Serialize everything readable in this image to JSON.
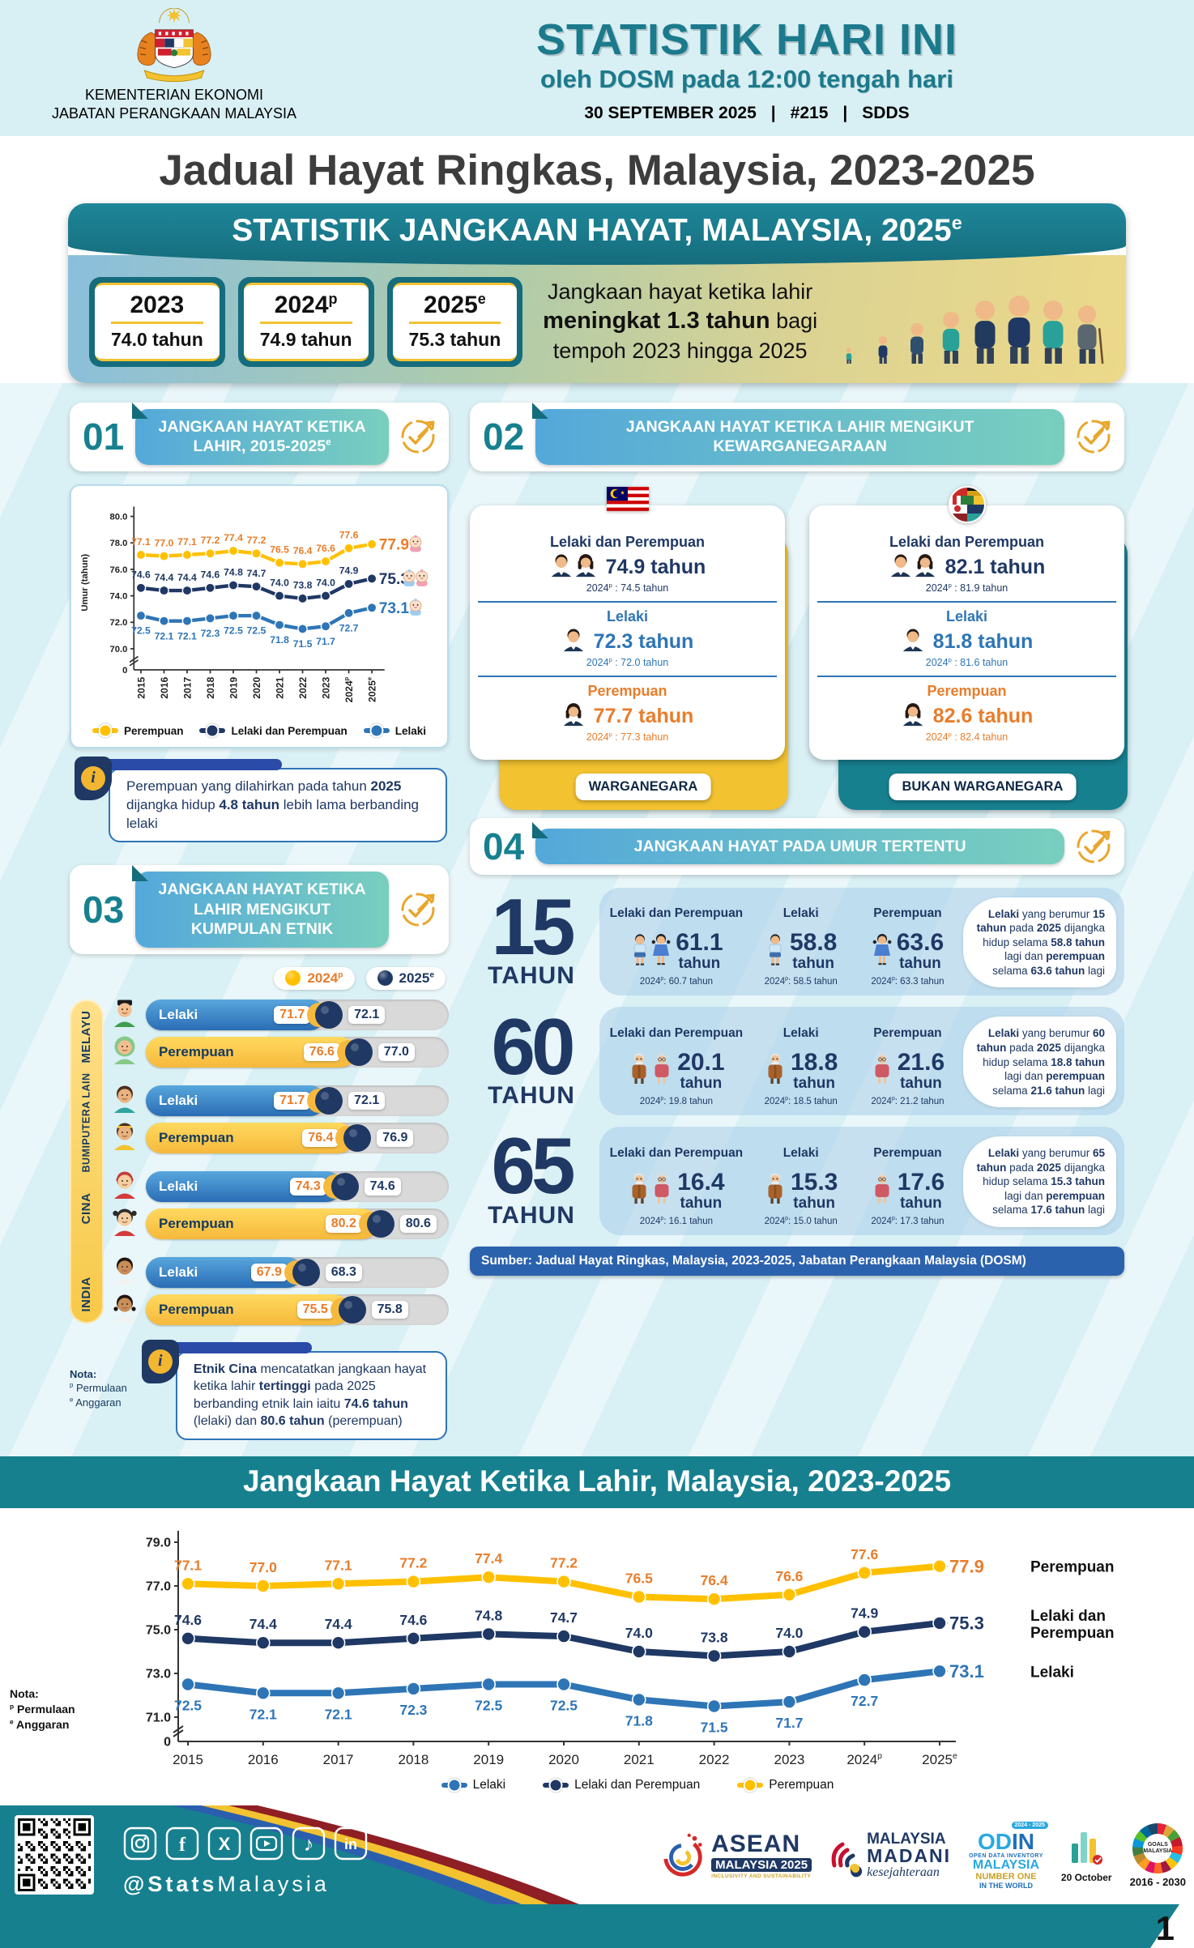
{
  "header": {
    "ministry1": "KEMENTERIAN EKONOMI",
    "ministry2": "JABATAN PERANGKAAN MALAYSIA",
    "title": "STATISTIK HARI INI",
    "subtitle": "oleh DOSM pada 12:00 tengah hari",
    "date": "30 SEPTEMBER 2025",
    "sep": "|",
    "issue": "#215",
    "sdds": "SDDS"
  },
  "page_title": "Jadual Hayat Ringkas, Malaysia, 2023-2025",
  "banner": {
    "title": "STATISTIK JANGKAAN HAYAT, MALAYSIA, 2025^e",
    "years": [
      {
        "year": "2023",
        "sup": "",
        "value": "74.0 tahun"
      },
      {
        "year": "2024",
        "sup": "p",
        "value": "74.9 tahun"
      },
      {
        "year": "2025",
        "sup": "e",
        "value": "75.3 tahun"
      }
    ],
    "highlight": "Jangkaan hayat ketika lahir **meningkat 1.3 tahun** bagi tempoh 2023 hingga 2025"
  },
  "sections": {
    "s1": {
      "number": "01",
      "title": "JANGKAAN HAYAT KETIKA LAHIR, 2015-2025^e"
    },
    "s2": {
      "number": "02",
      "title": "JANGKAAN HAYAT KETIKA LAHIR MENGIKUT KEWARGANEGARAAN"
    },
    "s3": {
      "number": "03",
      "title": "JANGKAAN HAYAT KETIKA LAHIR MENGIKUT KUMPULAN ETNIK"
    },
    "s4": {
      "number": "04",
      "title": "JANGKAAN HAYAT PADA UMUR TERTENTU"
    }
  },
  "notes": {
    "chart1": "Perempuan yang dilahirkan pada tahun **2025** dijangka hidup **4.8 tahun** lebih lama berbanding lelaki",
    "ethnic": "**Etnik Cina** mencatatkan jangkaan hayat ketika lahir **tertinggi** pada 2025 berbanding etnik lain iaitu **74.6 tahun** (lelaki) dan **80.6 tahun** (perempuan)"
  },
  "chart_data": [
    {
      "type": "line",
      "title": "JANGKAAN HAYAT KETIKA LAHIR, 2015-2025e",
      "ylabel": "Umur (tahun)",
      "xlabel": "",
      "x": [
        "2015",
        "2016",
        "2017",
        "2018",
        "2019",
        "2020",
        "2021",
        "2022",
        "2023",
        "2024^p",
        "2025^e"
      ],
      "yticks": [
        "80.0",
        "78.0",
        "76.0",
        "74.0",
        "72.0",
        "70.0"
      ],
      "ymin": 70,
      "ymax": 80,
      "axis_break": true,
      "grid": false,
      "series": [
        {
          "name": "Perempuan",
          "color": "#FFC000",
          "label_color": "#E87D2B",
          "label_pos": "above",
          "end_icon": "baby-girl",
          "values": [
            77.1,
            77.0,
            77.1,
            77.2,
            77.4,
            77.2,
            76.5,
            76.4,
            76.6,
            77.6,
            77.9
          ]
        },
        {
          "name": "Lelaki dan Perempuan",
          "color": "#1F3864",
          "label_color": "#1F3864",
          "label_pos": "above",
          "end_icon": "baby-pair",
          "values": [
            74.6,
            74.4,
            74.4,
            74.6,
            74.8,
            74.7,
            74.0,
            73.8,
            74.0,
            74.9,
            75.3
          ]
        },
        {
          "name": "Lelaki",
          "color": "#2E75B6",
          "label_color": "#2E75B6",
          "label_pos": "below",
          "end_icon": "baby-boy",
          "values": [
            72.5,
            72.1,
            72.1,
            72.3,
            72.5,
            72.5,
            71.8,
            71.5,
            71.7,
            72.7,
            73.1
          ]
        }
      ],
      "legend": [
        "Perempuan",
        "Lelaki dan Perempuan",
        "Lelaki"
      ],
      "legend_position": "bottom"
    },
    {
      "type": "line",
      "title": "Jangkaan Hayat Ketika Lahir, Malaysia, 2023-2025",
      "ylabel": "",
      "xlabel": "",
      "x": [
        "2015",
        "2016",
        "2017",
        "2018",
        "2019",
        "2020",
        "2021",
        "2022",
        "2023",
        "2024^p",
        "2025^e"
      ],
      "yticks": [
        "79.0",
        "77.0",
        "75.0",
        "73.0",
        "71.0"
      ],
      "ymin": 71,
      "ymax": 79,
      "axis_break": true,
      "grid": false,
      "series": [
        {
          "name": "Perempuan",
          "color": "#FFC000",
          "label_color": "#E87D2B",
          "label_pos": "above",
          "values": [
            77.1,
            77.0,
            77.1,
            77.2,
            77.4,
            77.2,
            76.5,
            76.4,
            76.6,
            77.6,
            77.9
          ]
        },
        {
          "name": "Lelaki dan Perempuan",
          "color": "#1F3864",
          "label_color": "#1F3864",
          "label_pos": "above",
          "values": [
            74.6,
            74.4,
            74.4,
            74.6,
            74.8,
            74.7,
            74.0,
            73.8,
            74.0,
            74.9,
            75.3
          ]
        },
        {
          "name": "Lelaki",
          "color": "#2E75B6",
          "label_color": "#2E75B6",
          "label_pos": "below",
          "values": [
            72.5,
            72.1,
            72.1,
            72.3,
            72.5,
            72.5,
            71.8,
            71.5,
            71.7,
            72.7,
            73.1
          ]
        }
      ],
      "legend": [
        "Lelaki",
        "Lelaki dan Perempuan",
        "Perempuan"
      ],
      "legend_position": "bottom",
      "side_labels": true
    }
  ],
  "citizenship": {
    "cards": [
      {
        "icon": "malaysia-flag",
        "tab": "WARGANEGARA",
        "accent": "#F2C230",
        "rows": [
          {
            "label": "Lelaki dan Perempuan",
            "color": "#1F3864",
            "icons": [
              "man",
              "woman"
            ],
            "value": "74.9 tahun",
            "prev": "2024^p : 74.5 tahun"
          },
          {
            "label": "Lelaki",
            "color": "#2E75B6",
            "icons": [
              "man"
            ],
            "value": "72.3 tahun",
            "prev": "2024^p : 72.0 tahun"
          },
          {
            "label": "Perempuan",
            "color": "#E87D2B",
            "icons": [
              "woman"
            ],
            "value": "77.7 tahun",
            "prev": "2024^p : 77.3 tahun"
          }
        ]
      },
      {
        "icon": "world-flags",
        "tab": "BUKAN WARGANEGARA",
        "accent": "#17808F",
        "rows": [
          {
            "label": "Lelaki dan Perempuan",
            "color": "#1F3864",
            "icons": [
              "man",
              "woman"
            ],
            "value": "82.1 tahun",
            "prev": "2024^p : 81.9 tahun"
          },
          {
            "label": "Lelaki",
            "color": "#2E75B6",
            "icons": [
              "man"
            ],
            "value": "81.8 tahun",
            "prev": "2024^p : 81.6 tahun"
          },
          {
            "label": "Perempuan",
            "color": "#E87D2B",
            "icons": [
              "woman"
            ],
            "value": "82.6 tahun",
            "prev": "2024^p : 82.4 tahun"
          }
        ]
      }
    ]
  },
  "ethnic": {
    "legend": [
      {
        "label": "2024^p",
        "dot": "#FFC000",
        "color": "#E87D2B"
      },
      {
        "label": "2025^e",
        "dot": "#1F3864",
        "color": "#1F3864"
      }
    ],
    "groups": [
      {
        "name": "MELAYU",
        "rows": [
          {
            "label": "Lelaki",
            "kind": "lelaki",
            "icon": "melayu-lelaki-icon",
            "v2024": 71.7,
            "v2025": 72.1
          },
          {
            "label": "Perempuan",
            "kind": "perempuan",
            "icon": "melayu-perempuan-icon",
            "v2024": 76.6,
            "v2025": 77.0
          }
        ]
      },
      {
        "name": "BUMIPUTERA LAIN",
        "rows": [
          {
            "label": "Lelaki",
            "kind": "lelaki",
            "icon": "bumiputera-lelaki-icon",
            "v2024": 71.7,
            "v2025": 72.1
          },
          {
            "label": "Perempuan",
            "kind": "perempuan",
            "icon": "bumiputera-perempuan-icon",
            "v2024": 76.4,
            "v2025": 76.9
          }
        ]
      },
      {
        "name": "CINA",
        "rows": [
          {
            "label": "Lelaki",
            "kind": "lelaki",
            "icon": "cina-lelaki-icon",
            "v2024": 74.3,
            "v2025": 74.6
          },
          {
            "label": "Perempuan",
            "kind": "perempuan",
            "icon": "cina-perempuan-icon",
            "v2024": 80.2,
            "v2025": 80.6
          }
        ]
      },
      {
        "name": "INDIA",
        "rows": [
          {
            "label": "Lelaki",
            "kind": "lelaki",
            "icon": "india-lelaki-icon",
            "v2024": 67.9,
            "v2025": 68.3
          },
          {
            "label": "Perempuan",
            "kind": "perempuan",
            "icon": "india-perempuan-icon",
            "v2024": 75.5,
            "v2025": 75.8
          }
        ]
      }
    ]
  },
  "ages": {
    "rows": [
      {
        "age": "15",
        "unit": "TAHUN",
        "cols": [
          {
            "head": "Lelaki dan Perempuan",
            "icons": [
              "boy",
              "girl"
            ],
            "value": "61.1",
            "vunit": "tahun",
            "prev": "2024^p: 60.7 tahun"
          },
          {
            "head": "Lelaki",
            "icons": [
              "boy"
            ],
            "value": "58.8",
            "vunit": "tahun",
            "prev": "2024^p: 58.5 tahun"
          },
          {
            "head": "Perempuan",
            "icons": [
              "girl"
            ],
            "value": "63.6",
            "vunit": "tahun",
            "prev": "2024^p: 63.3 tahun"
          }
        ],
        "note": "**Lelaki** yang berumur **15 tahun** pada **2025** dijangka hidup selama **58.8 tahun** lagi dan **perempuan** selama **63.6 tahun** lagi"
      },
      {
        "age": "60",
        "unit": "TAHUN",
        "cols": [
          {
            "head": "Lelaki dan Perempuan",
            "icons": [
              "grandpa",
              "grandma"
            ],
            "value": "20.1",
            "vunit": "tahun",
            "prev": "2024^p: 19.8 tahun"
          },
          {
            "head": "Lelaki",
            "icons": [
              "grandpa"
            ],
            "value": "18.8",
            "vunit": "tahun",
            "prev": "2024^p: 18.5 tahun"
          },
          {
            "head": "Perempuan",
            "icons": [
              "grandma"
            ],
            "value": "21.6",
            "vunit": "tahun",
            "prev": "2024^p: 21.2 tahun"
          }
        ],
        "note": "**Lelaki** yang berumur **60 tahun** pada **2025** dijangka hidup selama **18.8 tahun** lagi dan **perempuan** selama **21.6 tahun** lagi"
      },
      {
        "age": "65",
        "unit": "TAHUN",
        "cols": [
          {
            "head": "Lelaki dan Perempuan",
            "icons": [
              "grandpa",
              "grandma"
            ],
            "value": "16.4",
            "vunit": "tahun",
            "prev": "2024^p: 16.1 tahun"
          },
          {
            "head": "Lelaki",
            "icons": [
              "grandpa"
            ],
            "value": "15.3",
            "vunit": "tahun",
            "prev": "2024^p: 15.0 tahun"
          },
          {
            "head": "Perempuan",
            "icons": [
              "grandma"
            ],
            "value": "17.6",
            "vunit": "tahun",
            "prev": "2024^p: 17.3 tahun"
          }
        ],
        "note": "**Lelaki** yang berumur **65 tahun** pada **2025** dijangka hidup selama **15.3 tahun** lagi dan **perempuan** selama **17.6 tahun** lagi"
      }
    ]
  },
  "source": "Sumber: Jadual Hayat Ringkas, Malaysia, 2023-2025, Jabatan Perangkaan Malaysia (DOSM)",
  "bottom_chart_title": "Jangkaan Hayat Ketika Lahir, Malaysia, 2023-2025",
  "nota": {
    "label": "Nota:",
    "p": "^p Permulaan",
    "e": "^e Anggaran"
  },
  "footer": {
    "handle_bold": "@Stats",
    "handle_rest": "Malaysia",
    "social": [
      "instagram",
      "facebook",
      "x",
      "youtube",
      "tiktok",
      "linkedin"
    ],
    "logos": {
      "asean": {
        "l1": "ASEAN",
        "l2": "MALAYSIA 2025",
        "l3": "INCLUSIVITY AND SUSTAINABILITY"
      },
      "madani": {
        "l1": "MALAYSIA",
        "l2": "MADANI",
        "l3": "kesejahteraan"
      },
      "odin": {
        "od": "OD",
        "in": "IN",
        "l2": "OPEN DATA INVENTORY",
        "l3": "MALAYSIA",
        "l4": "NUMBER ONE",
        "l5": "IN THE WORLD",
        "badge": "2024 - 2025"
      },
      "october": {
        "label": "20 October"
      },
      "sdg": {
        "t1": "GOALS",
        "t2": "MALAYSIA",
        "label": "2016 - 2030"
      }
    },
    "page_number": "1"
  },
  "colors": {
    "teal": "#17808F",
    "navy": "#1F3864",
    "blue": "#2E75B6",
    "orange": "#E87D2B",
    "gold": "#FFC000"
  }
}
